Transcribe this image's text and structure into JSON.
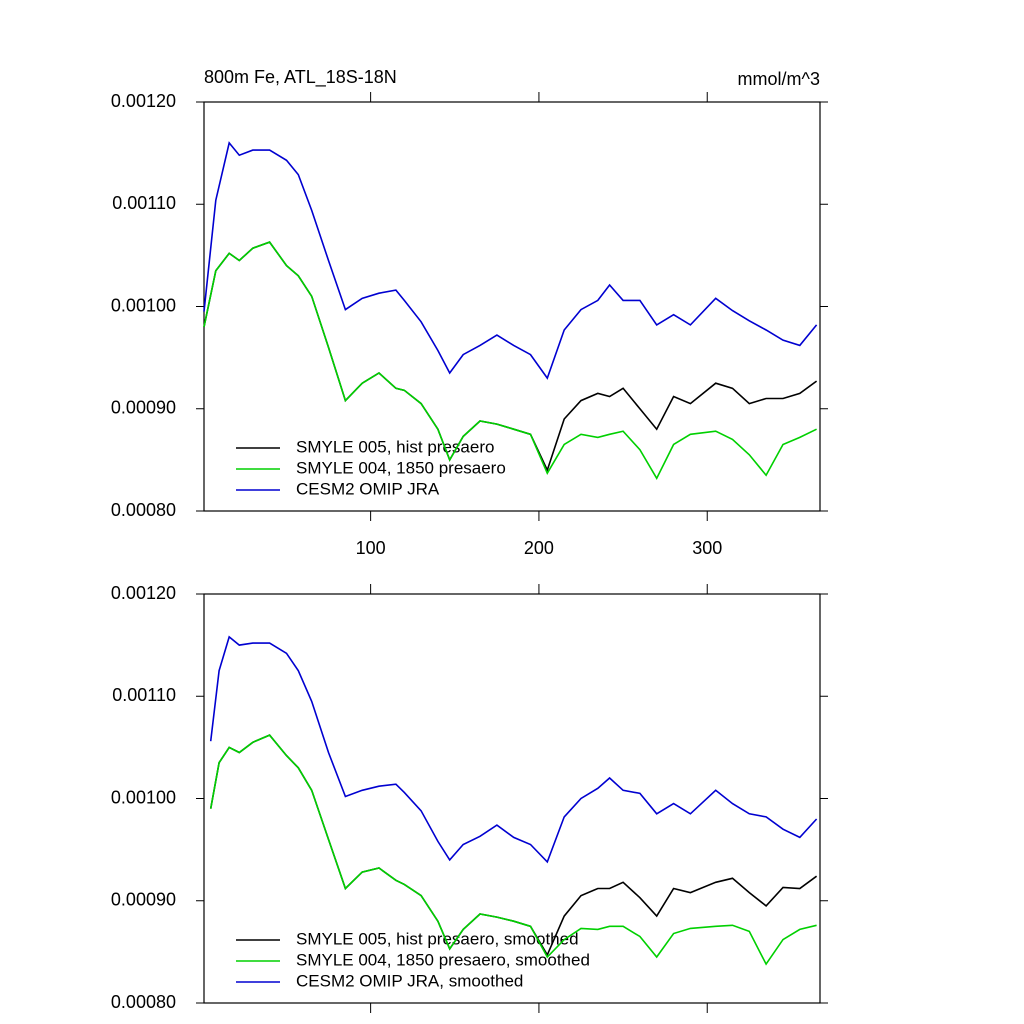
{
  "chart_data": [
    {
      "type": "line",
      "title": "800m Fe, ATL_18S-18N",
      "unit_label": "mmol/m^3",
      "x": [
        1,
        8,
        16,
        22,
        30,
        40,
        50,
        57,
        65,
        75,
        85,
        95,
        105,
        115,
        120,
        130,
        140,
        147,
        155,
        165,
        175,
        185,
        195,
        205,
        215,
        225,
        235,
        242,
        250,
        260,
        270,
        280,
        290,
        305,
        315,
        325,
        335,
        345,
        355,
        365
      ],
      "series": [
        {
          "name": "SMYLE 005, hist presaero",
          "color": "#000000",
          "values": [
            0.00098,
            0.001035,
            0.001052,
            0.001045,
            0.001057,
            0.001063,
            0.00104,
            0.00103,
            0.00101,
            0.00096,
            0.000908,
            0.000925,
            0.000935,
            0.00092,
            0.000918,
            0.000905,
            0.00088,
            0.00085,
            0.000873,
            0.000888,
            0.000885,
            0.00088,
            0.000875,
            0.00084,
            0.00089,
            0.000908,
            0.000915,
            0.000912,
            0.00092,
            0.0009,
            0.00088,
            0.000912,
            0.000905,
            0.000925,
            0.00092,
            0.000905,
            0.00091,
            0.00091,
            0.000915,
            0.000927
          ]
        },
        {
          "name": "SMYLE 004, 1850 presaero",
          "color": "#00d000",
          "values": [
            0.00098,
            0.001035,
            0.001052,
            0.001045,
            0.001057,
            0.001063,
            0.00104,
            0.00103,
            0.00101,
            0.00096,
            0.000908,
            0.000925,
            0.000935,
            0.00092,
            0.000918,
            0.000905,
            0.00088,
            0.00085,
            0.000873,
            0.000888,
            0.000885,
            0.00088,
            0.000875,
            0.000837,
            0.000865,
            0.000875,
            0.000872,
            0.000875,
            0.000878,
            0.00086,
            0.000832,
            0.000865,
            0.000875,
            0.000878,
            0.00087,
            0.000855,
            0.000835,
            0.000865,
            0.000872,
            0.00088
          ]
        },
        {
          "name": "CESM2 OMIP JRA",
          "color": "#0000d0",
          "values": [
            0.000995,
            0.001104,
            0.00116,
            0.001148,
            0.001153,
            0.001153,
            0.001143,
            0.001129,
            0.001094,
            0.001045,
            0.000997,
            0.001008,
            0.001013,
            0.001016,
            0.001006,
            0.000985,
            0.000957,
            0.000935,
            0.000953,
            0.000962,
            0.000972,
            0.000962,
            0.000953,
            0.00093,
            0.000977,
            0.000997,
            0.001006,
            0.001021,
            0.001006,
            0.001006,
            0.000982,
            0.000992,
            0.000982,
            0.001008,
            0.000996,
            0.000986,
            0.000977,
            0.000967,
            0.000962,
            0.000982
          ]
        }
      ],
      "xlim": [
        1,
        367
      ],
      "xticks": [
        100,
        200,
        300
      ],
      "ylim": [
        0.0008,
        0.0012
      ],
      "yticks": [
        {
          "value": 0.0008,
          "label": "0.00080"
        },
        {
          "value": 0.0009,
          "label": "0.00090"
        },
        {
          "value": 0.001,
          "label": "0.00100"
        },
        {
          "value": 0.0011,
          "label": "0.00110"
        },
        {
          "value": 0.0012,
          "label": "0.00120"
        }
      ],
      "legend": "lower left"
    },
    {
      "type": "line",
      "x": [
        5,
        10,
        16,
        22,
        30,
        40,
        50,
        57,
        65,
        75,
        85,
        95,
        105,
        115,
        120,
        130,
        140,
        147,
        155,
        165,
        175,
        185,
        195,
        205,
        215,
        225,
        235,
        242,
        250,
        260,
        270,
        280,
        290,
        305,
        315,
        325,
        335,
        345,
        355,
        365
      ],
      "series": [
        {
          "name": "SMYLE 005, hist presaero, smoothed",
          "color": "#000000",
          "values": [
            0.00099,
            0.001035,
            0.00105,
            0.001045,
            0.001055,
            0.001062,
            0.001042,
            0.00103,
            0.001008,
            0.00096,
            0.000912,
            0.000928,
            0.000932,
            0.00092,
            0.000916,
            0.000905,
            0.00088,
            0.000853,
            0.000872,
            0.000887,
            0.000884,
            0.00088,
            0.000875,
            0.000847,
            0.000885,
            0.000905,
            0.000912,
            0.000912,
            0.000918,
            0.000903,
            0.000885,
            0.000912,
            0.000908,
            0.000918,
            0.000922,
            0.000908,
            0.000895,
            0.000913,
            0.000912,
            0.000924
          ]
        },
        {
          "name": "SMYLE 004, 1850 presaero, smoothed",
          "color": "#00d000",
          "values": [
            0.00099,
            0.001035,
            0.00105,
            0.001045,
            0.001055,
            0.001062,
            0.001042,
            0.00103,
            0.001008,
            0.00096,
            0.000912,
            0.000928,
            0.000932,
            0.00092,
            0.000916,
            0.000905,
            0.00088,
            0.000853,
            0.000872,
            0.000887,
            0.000884,
            0.00088,
            0.000875,
            0.000845,
            0.000862,
            0.000873,
            0.000872,
            0.000875,
            0.000875,
            0.000865,
            0.000845,
            0.000868,
            0.000873,
            0.000875,
            0.000876,
            0.00087,
            0.000838,
            0.000862,
            0.000872,
            0.000876
          ]
        },
        {
          "name": "CESM2 OMIP JRA, smoothed",
          "color": "#0000d0",
          "values": [
            0.001056,
            0.001125,
            0.001158,
            0.00115,
            0.001152,
            0.001152,
            0.001142,
            0.001125,
            0.001095,
            0.001045,
            0.001002,
            0.001008,
            0.001012,
            0.001014,
            0.001006,
            0.000988,
            0.000958,
            0.00094,
            0.000955,
            0.000963,
            0.000974,
            0.000962,
            0.000955,
            0.000938,
            0.000982,
            0.001,
            0.00101,
            0.00102,
            0.001008,
            0.001005,
            0.000985,
            0.000995,
            0.000985,
            0.001008,
            0.000995,
            0.000985,
            0.000982,
            0.00097,
            0.000962,
            0.00098
          ]
        }
      ],
      "xlim": [
        1,
        367
      ],
      "xticks": [
        100,
        200,
        300
      ],
      "ylim": [
        0.0008,
        0.0012
      ],
      "yticks": [
        {
          "value": 0.0008,
          "label": "0.00080"
        },
        {
          "value": 0.0009,
          "label": "0.00090"
        },
        {
          "value": 0.001,
          "label": "0.00100"
        },
        {
          "value": 0.0011,
          "label": "0.00110"
        },
        {
          "value": 0.0012,
          "label": "0.00120"
        }
      ],
      "legend": "lower left"
    }
  ]
}
